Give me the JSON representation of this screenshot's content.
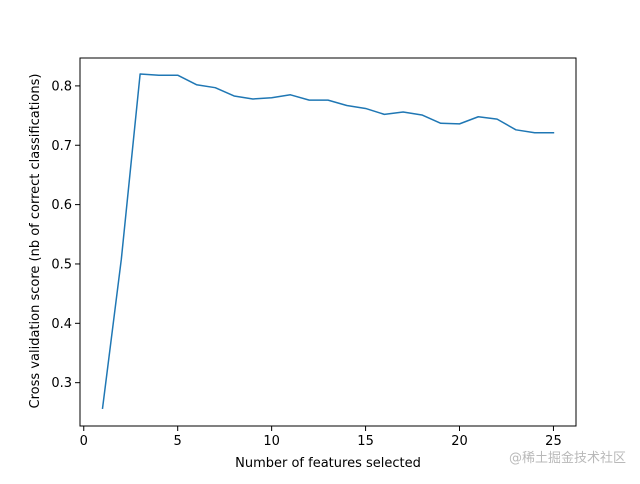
{
  "chart_data": {
    "type": "line",
    "title": "",
    "xlabel": "Number of features selected",
    "ylabel": "Cross validation score (nb of correct classifications)",
    "xlim": [
      -0.2,
      26.2
    ],
    "ylim": [
      0.227,
      0.847
    ],
    "xticks": [
      0,
      5,
      10,
      15,
      20,
      25
    ],
    "yticks": [
      0.3,
      0.4,
      0.5,
      0.6,
      0.7,
      0.8
    ],
    "xtick_labels": [
      "0",
      "5",
      "10",
      "15",
      "20",
      "25"
    ],
    "ytick_labels": [
      "0.3",
      "0.4",
      "0.5",
      "0.6",
      "0.7",
      "0.8"
    ],
    "grid": false,
    "legend": "none",
    "series": [
      {
        "color": "#1f77b4",
        "x": [
          1,
          2,
          3,
          4,
          5,
          6,
          7,
          8,
          9,
          10,
          11,
          12,
          13,
          14,
          15,
          16,
          17,
          18,
          19,
          20,
          21,
          22,
          23,
          24,
          25
        ],
        "y": [
          0.257,
          0.508,
          0.82,
          0.818,
          0.818,
          0.802,
          0.797,
          0.783,
          0.778,
          0.78,
          0.785,
          0.776,
          0.776,
          0.767,
          0.762,
          0.752,
          0.756,
          0.751,
          0.737,
          0.736,
          0.748,
          0.744,
          0.726,
          0.721,
          0.721
        ]
      }
    ]
  },
  "watermark": "@稀土掘金技术社区"
}
